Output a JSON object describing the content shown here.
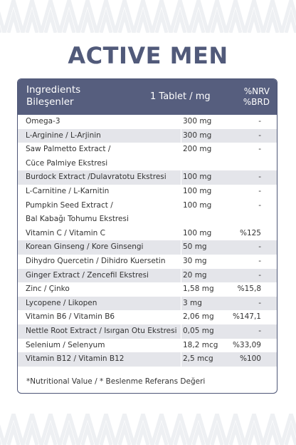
{
  "title": "ACTIVE MEN",
  "table": {
    "header": {
      "name_en": "Ingredients",
      "name_tr": "Bileşenler",
      "amount": "1 Tablet / mg",
      "nrv_en": "%NRV",
      "nrv_tr": "%BRD"
    },
    "rows": [
      {
        "name": "Omega-3",
        "amount": "300 mg",
        "nrv": "-"
      },
      {
        "name": "L-Arginine / L-Arjinin",
        "amount": "300 mg",
        "nrv": "-"
      },
      {
        "name": "Saw Palmetto Extract /",
        "amount": "200 mg",
        "nrv": "-"
      },
      {
        "name": "Cüce Palmiye Ekstresi",
        "amount": "",
        "nrv": ""
      },
      {
        "name": "Burdock Extract /Dulavratotu Ekstresi",
        "amount": "100 mg",
        "nrv": "-"
      },
      {
        "name": "L-Carnitine / L-Karnitin",
        "amount": "100 mg",
        "nrv": "-"
      },
      {
        "name": "Pumpkin Seed Extract /",
        "amount": "100 mg",
        "nrv": "-"
      },
      {
        "name": "Bal Kabağı Tohumu Ekstresi",
        "amount": "",
        "nrv": ""
      },
      {
        "name": "Vitamin C / Vitamin C",
        "amount": "100 mg",
        "nrv": "%125"
      },
      {
        "name": "Korean Ginseng / Kore Ginsengi",
        "amount": "50 mg",
        "nrv": "-"
      },
      {
        "name": "Dihydro Quercetin / Dihidro Kuersetin",
        "amount": "30 mg",
        "nrv": "-"
      },
      {
        "name": "Ginger Extract / Zencefil Ekstresi",
        "amount": "20 mg",
        "nrv": "-"
      },
      {
        "name": "Zinc / Çinko",
        "amount": "1,58 mg",
        "nrv": "%15,8"
      },
      {
        "name": "Lycopene / Likopen",
        "amount": "3 mg",
        "nrv": "-"
      },
      {
        "name": "Vitamin B6 / Vitamin B6",
        "amount": "2,06 mg",
        "nrv": "%147,1"
      },
      {
        "name": "Nettle Root Extract / Isırgan Otu Ekstresi",
        "amount": "0,05 mg",
        "nrv": "-"
      },
      {
        "name": "Selenium / Selenyum",
        "amount": "18,2 mcg",
        "nrv": "%33,09"
      },
      {
        "name": "Vitamin B12 / Vitamin B12",
        "amount": "2,5 mcg",
        "nrv": "%100"
      }
    ],
    "row_shading": [
      false,
      true,
      false,
      false,
      true,
      false,
      false,
      false,
      false,
      true,
      false,
      true,
      false,
      true,
      false,
      true,
      false,
      true
    ],
    "footnote": "*Nutritional Value / * Beslenme Referans Değeri"
  },
  "colors": {
    "title": "#515a7a",
    "header_bg": "#565e7e",
    "row_alt_bg": "#e4e5ea",
    "pattern": "#eef0f3"
  }
}
